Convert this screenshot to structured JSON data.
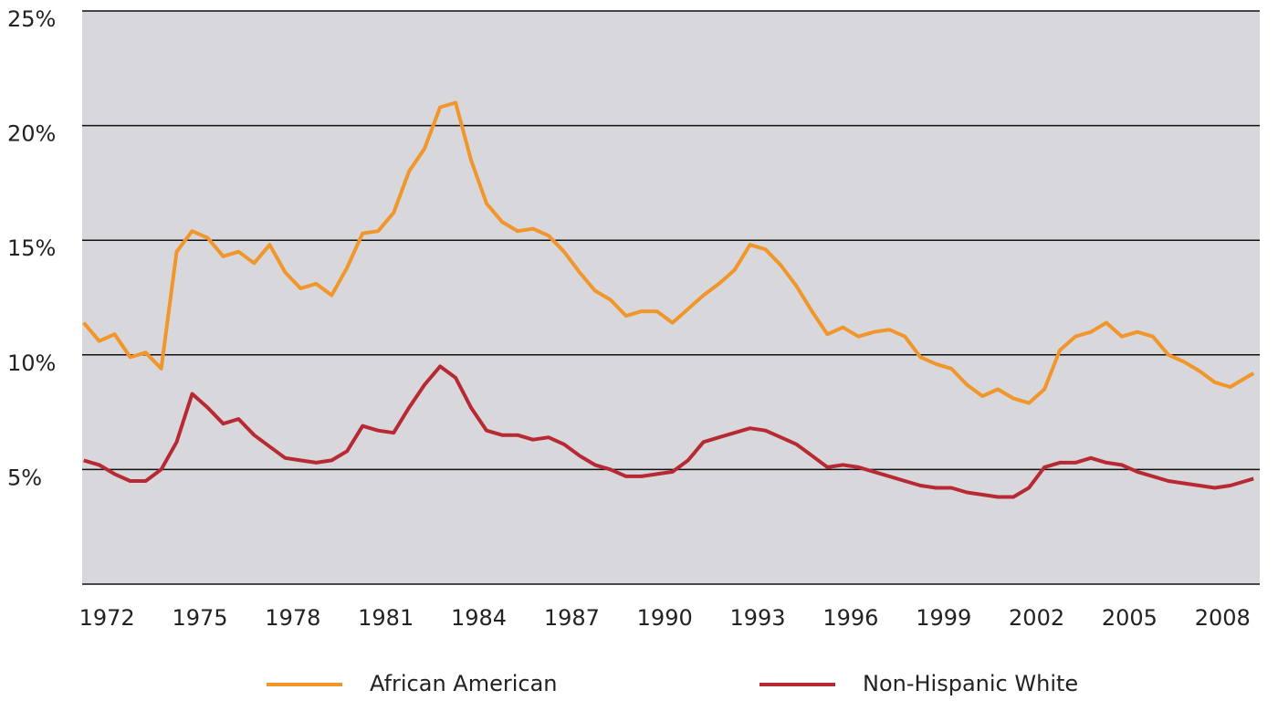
{
  "chart_data": {
    "type": "line",
    "x": [
      1971.25,
      1971.75,
      1972.25,
      1972.75,
      1973.25,
      1973.75,
      1974.25,
      1974.75,
      1975.25,
      1975.75,
      1976.25,
      1976.75,
      1977.25,
      1977.75,
      1978.25,
      1978.75,
      1979.25,
      1979.75,
      1980.25,
      1980.75,
      1981.25,
      1981.75,
      1982.25,
      1982.75,
      1983.25,
      1983.75,
      1984.25,
      1984.75,
      1985.25,
      1985.75,
      1986.25,
      1986.75,
      1987.25,
      1987.75,
      1988.25,
      1988.75,
      1989.25,
      1989.75,
      1990.25,
      1990.75,
      1991.25,
      1991.75,
      1992.25,
      1992.75,
      1993.25,
      1993.75,
      1994.25,
      1994.75,
      1995.25,
      1995.75,
      1996.25,
      1996.75,
      1997.25,
      1997.75,
      1998.25,
      1998.75,
      1999.25,
      1999.75,
      2000.25,
      2000.75,
      2001.25,
      2001.75,
      2002.25,
      2002.75,
      2003.25,
      2003.75,
      2004.25,
      2004.75,
      2005.25,
      2005.75,
      2006.25,
      2006.75,
      2007.25,
      2007.75,
      2008.25,
      2008.75,
      2009.0
    ],
    "series": [
      {
        "name": "African American",
        "color": "#f0962a",
        "values": [
          11.4,
          10.6,
          10.9,
          9.9,
          10.1,
          9.4,
          14.5,
          15.4,
          15.1,
          14.3,
          14.5,
          14.0,
          14.8,
          13.6,
          12.9,
          13.1,
          12.6,
          13.8,
          15.3,
          15.4,
          16.2,
          18.0,
          19.0,
          20.8,
          21.0,
          18.5,
          16.6,
          15.8,
          15.4,
          15.5,
          15.2,
          14.5,
          13.6,
          12.8,
          12.4,
          11.7,
          11.9,
          11.9,
          11.4,
          12.0,
          12.6,
          13.1,
          13.7,
          14.8,
          14.6,
          13.9,
          13.0,
          11.9,
          10.9,
          11.2,
          10.8,
          11.0,
          11.1,
          10.8,
          9.9,
          9.6,
          9.4,
          8.7,
          8.2,
          8.5,
          8.1,
          7.9,
          8.5,
          10.2,
          10.8,
          11.0,
          11.4,
          10.8,
          11.0,
          10.8,
          10.0,
          9.7,
          9.3,
          8.8,
          8.6,
          9.0,
          9.2
        ]
      },
      {
        "name": "Non-Hispanic White",
        "color": "#b72a33",
        "values": [
          5.4,
          5.2,
          4.8,
          4.5,
          4.5,
          5.0,
          6.2,
          8.3,
          7.7,
          7.0,
          7.2,
          6.5,
          6.0,
          5.5,
          5.4,
          5.3,
          5.4,
          5.8,
          6.9,
          6.7,
          6.6,
          7.7,
          8.7,
          9.5,
          9.0,
          7.7,
          6.7,
          6.5,
          6.5,
          6.3,
          6.4,
          6.1,
          5.6,
          5.2,
          5.0,
          4.7,
          4.7,
          4.8,
          4.9,
          5.4,
          6.2,
          6.4,
          6.6,
          6.8,
          6.7,
          6.4,
          6.1,
          5.6,
          5.1,
          5.2,
          5.1,
          4.9,
          4.7,
          4.5,
          4.3,
          4.2,
          4.2,
          4.0,
          3.9,
          3.8,
          3.8,
          4.2,
          5.1,
          5.3,
          5.3,
          5.5,
          5.3,
          5.2,
          4.9,
          4.7,
          4.5,
          4.4,
          4.3,
          4.2,
          4.3,
          4.5,
          4.6
        ]
      }
    ],
    "xlim": [
      1971.2,
      2009.2
    ],
    "xticks": [
      1972,
      1975,
      1978,
      1981,
      1984,
      1987,
      1990,
      1993,
      1996,
      1999,
      2002,
      2005,
      2008
    ],
    "ylim": [
      0,
      25
    ],
    "yticks": [
      {
        "value": 5,
        "label": "5%"
      },
      {
        "value": 10,
        "label": "10%"
      },
      {
        "value": 15,
        "label": "15%"
      },
      {
        "value": 20,
        "label": "20%"
      },
      {
        "value": 25,
        "label": "25%"
      }
    ],
    "grid": true,
    "legend": "bottom",
    "background": "#d7d7dc"
  }
}
